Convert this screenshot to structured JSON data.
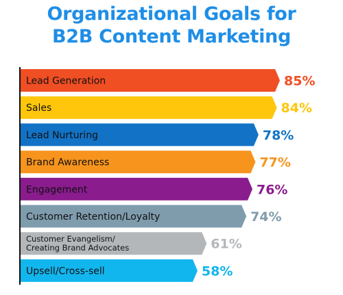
{
  "title_line1": "Organizational Goals for",
  "title_line2": "B2B Content Marketing",
  "chart_data": {
    "type": "bar",
    "orientation": "horizontal",
    "title": "Organizational Goals for B2B Content Marketing",
    "categories": [
      "Lead Generation",
      "Sales",
      "Lead Nurturing",
      "Brand Awareness",
      "Engagement",
      "Customer Retention/Loyalty",
      "Customer Evangelism/ Creating Brand Advocates",
      "Upsell/Cross-sell"
    ],
    "values": [
      85,
      84,
      78,
      77,
      76,
      74,
      61,
      58
    ],
    "value_labels": [
      "85%",
      "84%",
      "78%",
      "77%",
      "76%",
      "74%",
      "61%",
      "58%"
    ],
    "colors": [
      "#f04e23",
      "#ffc60b",
      "#1273c6",
      "#f7941d",
      "#8a1c8e",
      "#7f9cad",
      "#b3b7ba",
      "#12b6ee"
    ],
    "legend": "none",
    "grid": false
  }
}
